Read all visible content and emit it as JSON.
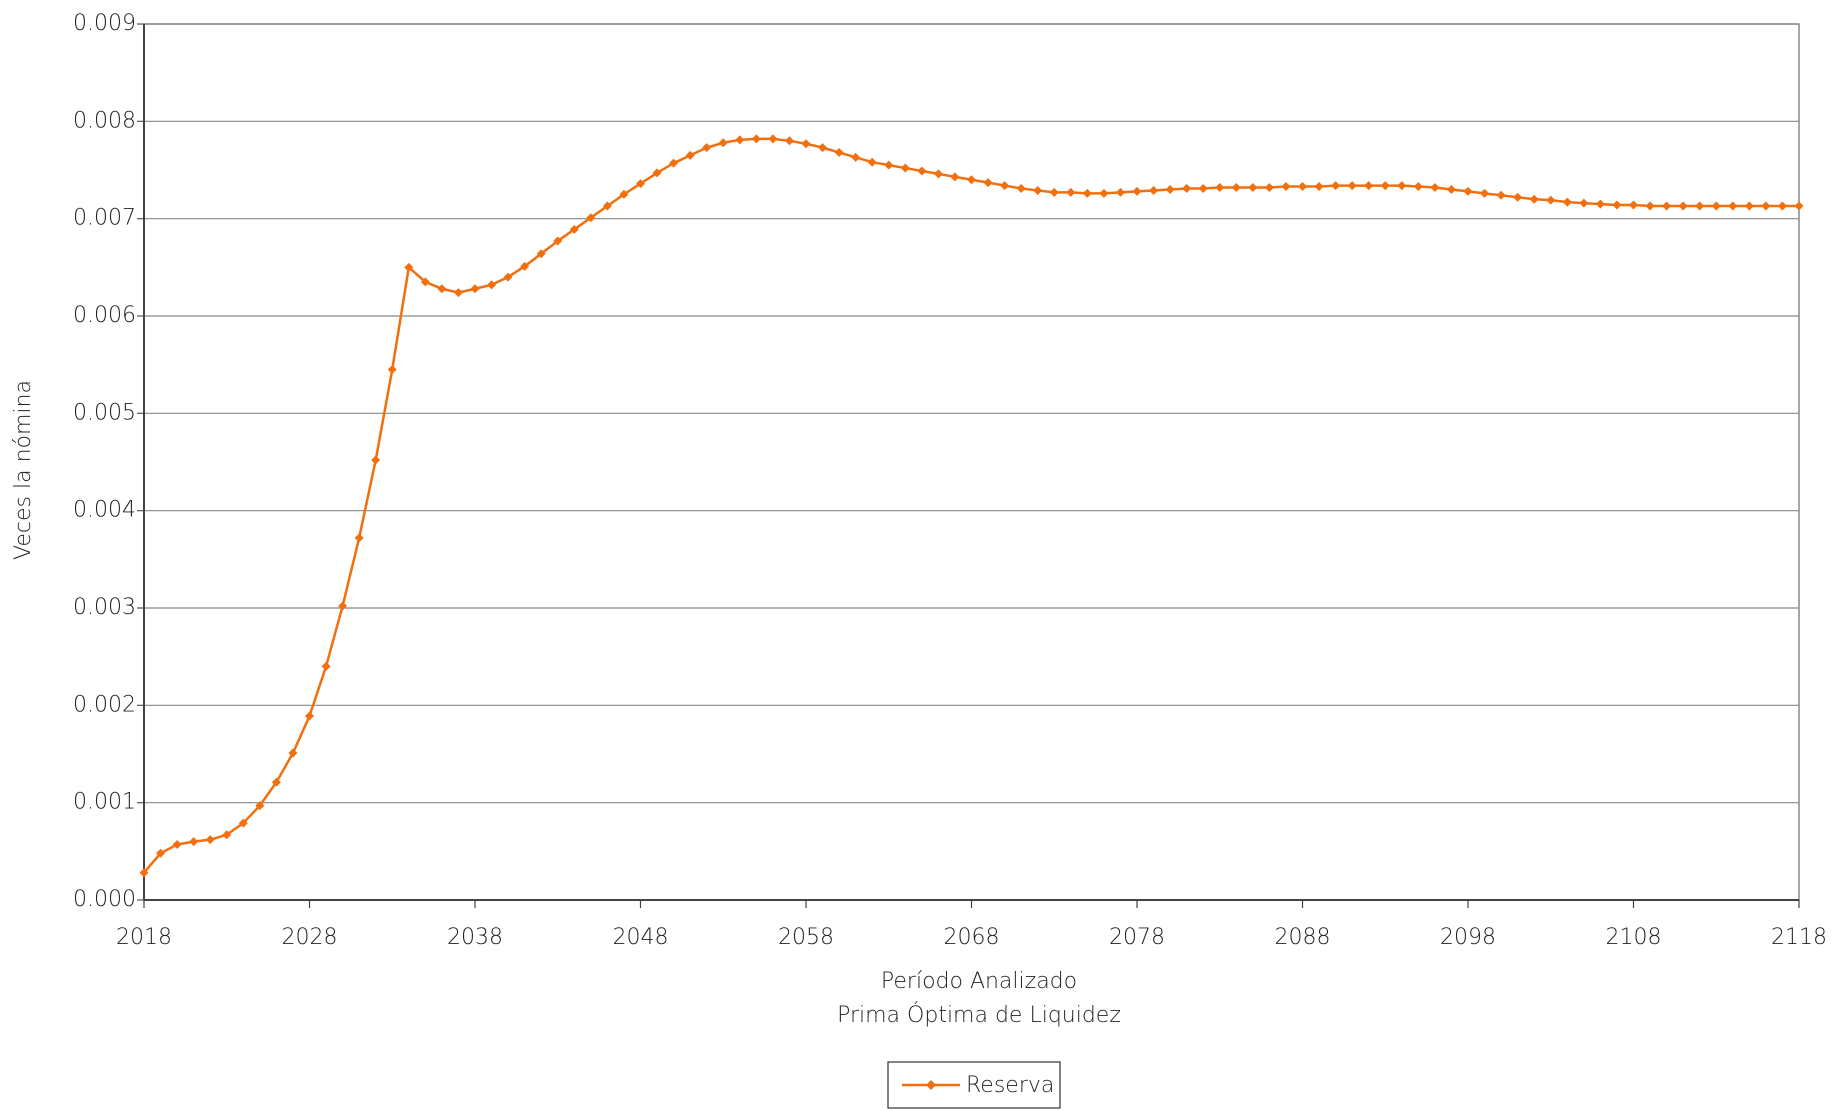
{
  "chart_data": {
    "type": "line",
    "x_label": [
      "Período Analizado",
      "Prima Óptima de Liquidez"
    ],
    "y_label": "Veces la nómina",
    "x": [
      2018,
      2019,
      2020,
      2021,
      2022,
      2023,
      2024,
      2025,
      2026,
      2027,
      2028,
      2029,
      2030,
      2031,
      2032,
      2033,
      2034,
      2035,
      2036,
      2037,
      2038,
      2039,
      2040,
      2041,
      2042,
      2043,
      2044,
      2045,
      2046,
      2047,
      2048,
      2049,
      2050,
      2051,
      2052,
      2053,
      2054,
      2055,
      2056,
      2057,
      2058,
      2059,
      2060,
      2061,
      2062,
      2063,
      2064,
      2065,
      2066,
      2067,
      2068,
      2069,
      2070,
      2071,
      2072,
      2073,
      2074,
      2075,
      2076,
      2077,
      2078,
      2079,
      2080,
      2081,
      2082,
      2083,
      2084,
      2085,
      2086,
      2087,
      2088,
      2089,
      2090,
      2091,
      2092,
      2093,
      2094,
      2095,
      2096,
      2097,
      2098,
      2099,
      2100,
      2101,
      2102,
      2103,
      2104,
      2105,
      2106,
      2107,
      2108,
      2109,
      2110,
      2111,
      2112,
      2113,
      2114,
      2115,
      2116,
      2117,
      2118
    ],
    "series": [
      {
        "name": "Reserva",
        "color": "#f26f0f",
        "values": [
          0.00028,
          0.00048,
          0.00057,
          0.0006,
          0.00062,
          0.00067,
          0.00079,
          0.00097,
          0.00121,
          0.00151,
          0.00189,
          0.0024,
          0.00302,
          0.00372,
          0.00452,
          0.00545,
          0.0065,
          0.00635,
          0.00628,
          0.00624,
          0.00628,
          0.00632,
          0.0064,
          0.00651,
          0.00664,
          0.00677,
          0.00689,
          0.00701,
          0.00713,
          0.00725,
          0.00736,
          0.00747,
          0.00757,
          0.00765,
          0.00773,
          0.00778,
          0.00781,
          0.00782,
          0.00782,
          0.0078,
          0.00777,
          0.00773,
          0.00768,
          0.00763,
          0.00758,
          0.00755,
          0.00752,
          0.00749,
          0.00746,
          0.00743,
          0.0074,
          0.00737,
          0.00734,
          0.00731,
          0.00729,
          0.00727,
          0.00727,
          0.00726,
          0.00726,
          0.00727,
          0.00728,
          0.00729,
          0.0073,
          0.00731,
          0.00731,
          0.00732,
          0.00732,
          0.00732,
          0.00732,
          0.00733,
          0.00733,
          0.00733,
          0.00734,
          0.00734,
          0.00734,
          0.00734,
          0.00734,
          0.00733,
          0.00732,
          0.0073,
          0.00728,
          0.00726,
          0.00724,
          0.00722,
          0.0072,
          0.00719,
          0.00717,
          0.00716,
          0.00715,
          0.00714,
          0.00714,
          0.00713,
          0.00713,
          0.00713,
          0.00713,
          0.00713,
          0.00713,
          0.00713,
          0.00713,
          0.00713,
          0.00713
        ]
      }
    ],
    "xlim": [
      2018,
      2118
    ],
    "xticks": [
      2018,
      2028,
      2038,
      2048,
      2058,
      2068,
      2078,
      2088,
      2098,
      2108,
      2118
    ],
    "ylim": [
      0,
      0.009
    ],
    "yticks": [
      {
        "value": 0,
        "label": "0.000"
      },
      0.001,
      0.002,
      0.003,
      0.004,
      0.005,
      0.006,
      0.007,
      0.008,
      0.009
    ],
    "grid": true
  }
}
